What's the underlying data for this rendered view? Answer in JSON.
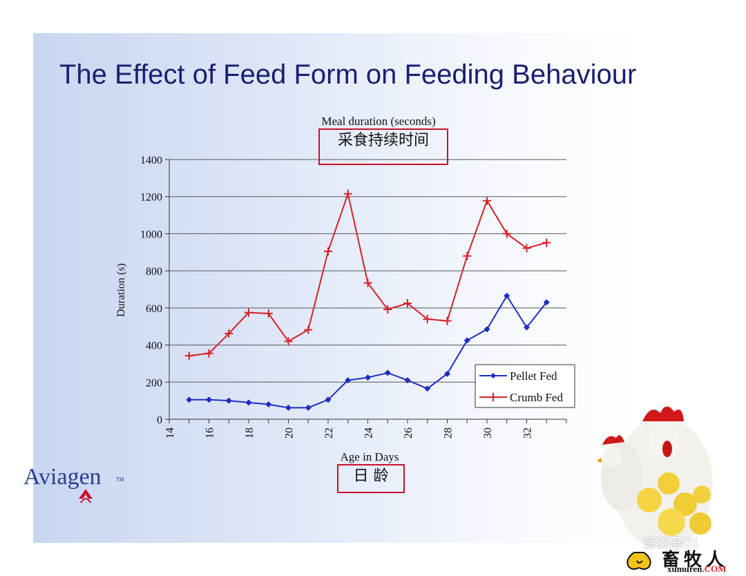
{
  "slide": {
    "title": "The Effect of Feed Form on Feeding Behaviour"
  },
  "brand": {
    "name": "Aviagen",
    "tm": "TM"
  },
  "watermark": {
    "account": "营养荟01",
    "site": "畜牧人",
    "domain_main": "xumuren",
    "domain_tld": ".COM"
  },
  "annotations": {
    "title_cn": "采食持续时间",
    "xlabel_cn": "日 龄"
  },
  "colors": {
    "pellet": "#1c2dbf",
    "crumb": "#d42128",
    "annotation_box": "#c8102e",
    "title": "#1a1f6e"
  },
  "chart_data": {
    "type": "line",
    "title": "Meal duration (seconds)",
    "xlabel": "Age in Days",
    "ylabel": "Duration (s)",
    "xlim": [
      14,
      34
    ],
    "ylim": [
      0,
      1400
    ],
    "x_ticks": [
      14,
      16,
      18,
      20,
      22,
      24,
      26,
      28,
      30,
      32
    ],
    "y_ticks": [
      0,
      200,
      400,
      600,
      800,
      1000,
      1200,
      1400
    ],
    "grid": true,
    "legend_position": "bottom-right",
    "x": [
      15,
      16,
      17,
      18,
      19,
      20,
      21,
      22,
      23,
      24,
      25,
      26,
      27,
      28,
      29,
      30,
      31,
      32,
      33
    ],
    "series": [
      {
        "name": "Pellet Fed",
        "marker": "diamond",
        "color": "#1c2dbf",
        "values": [
          105,
          105,
          100,
          90,
          80,
          62,
          62,
          105,
          210,
          225,
          250,
          210,
          165,
          245,
          425,
          485,
          665,
          495,
          630
        ]
      },
      {
        "name": "Crumb Fed",
        "marker": "plus",
        "color": "#d42128",
        "values": [
          342,
          355,
          462,
          575,
          570,
          420,
          482,
          905,
          1215,
          735,
          592,
          625,
          540,
          530,
          880,
          1178,
          1000,
          922,
          952
        ]
      }
    ]
  }
}
